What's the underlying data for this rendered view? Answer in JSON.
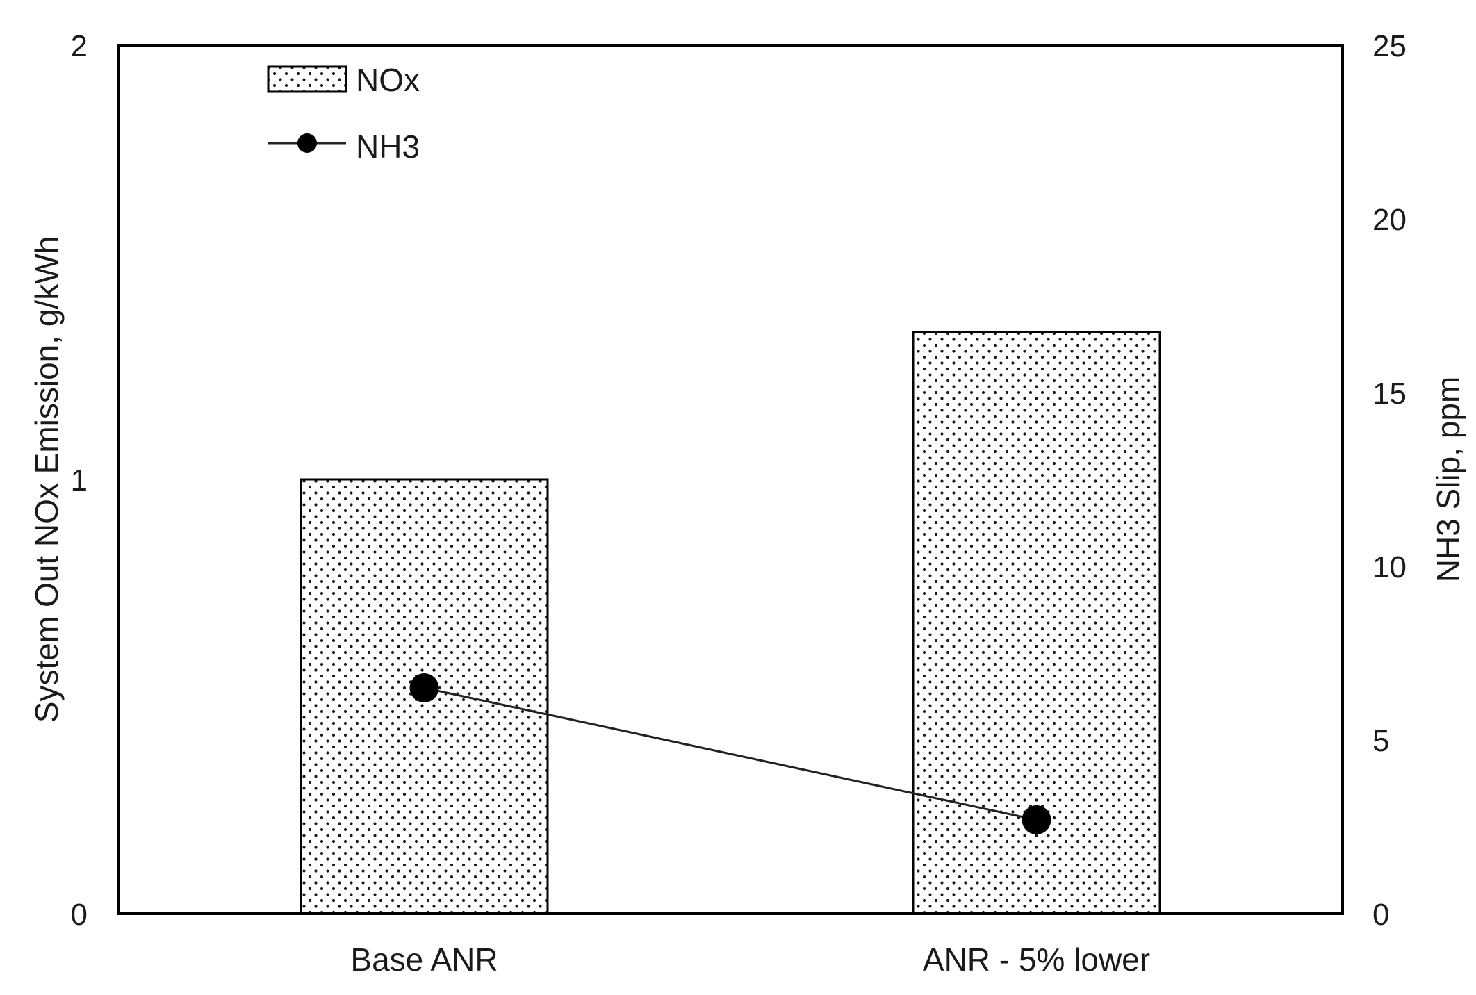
{
  "chart_data": {
    "type": "bar",
    "categories": [
      "Base ANR",
      "ANR - 5% lower"
    ],
    "series": [
      {
        "name": "NOx",
        "type": "bar",
        "axis": "left",
        "values": [
          1.0,
          1.34
        ]
      },
      {
        "name": "NH3",
        "type": "line",
        "axis": "right",
        "values": [
          6.5,
          2.7
        ]
      }
    ],
    "ylabel": "System Out NOx Emission, g/kWh",
    "y2label": "NH3 Slip, ppm",
    "ylim": [
      0,
      2
    ],
    "y2lim": [
      0,
      25
    ],
    "yticks": [
      "0",
      "1",
      "2"
    ],
    "y2ticks": [
      "0",
      "5",
      "10",
      "15",
      "20",
      "25"
    ],
    "grid": false,
    "legend_position": "top-left",
    "colors": {
      "axis": "#000000",
      "bar_fill": "#ffffff",
      "bar_dots": "#1a1a1a",
      "line": "#222222",
      "marker": "#000000"
    }
  }
}
